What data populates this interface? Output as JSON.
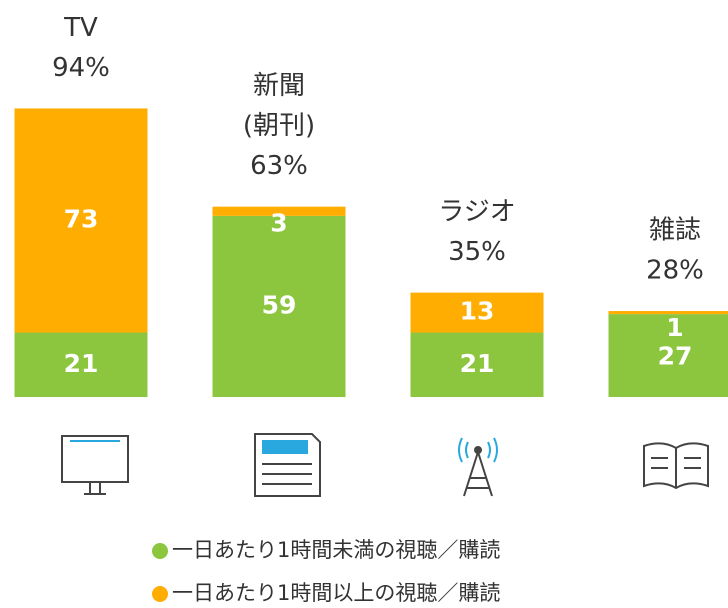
{
  "chart_data": {
    "type": "stacked_bar",
    "categories": [
      "TV",
      "新聞",
      "ラジオ",
      "雑誌"
    ],
    "category_notes": [
      null,
      "(朝刊)",
      null,
      null
    ],
    "totals": [
      94,
      63,
      35,
      28
    ],
    "total_labels": [
      "94%",
      "63%",
      "35%",
      "28%"
    ],
    "series": [
      {
        "name": "一日あたり1時間未満の視聴／購読",
        "color": "#8cc63f",
        "values": [
          21,
          59,
          21,
          27
        ]
      },
      {
        "name": "一日あたり1時間以上の視聴／購読",
        "color": "#ffad00",
        "values": [
          73,
          3,
          13,
          1
        ]
      }
    ],
    "ylim": [
      0,
      100
    ]
  }
}
